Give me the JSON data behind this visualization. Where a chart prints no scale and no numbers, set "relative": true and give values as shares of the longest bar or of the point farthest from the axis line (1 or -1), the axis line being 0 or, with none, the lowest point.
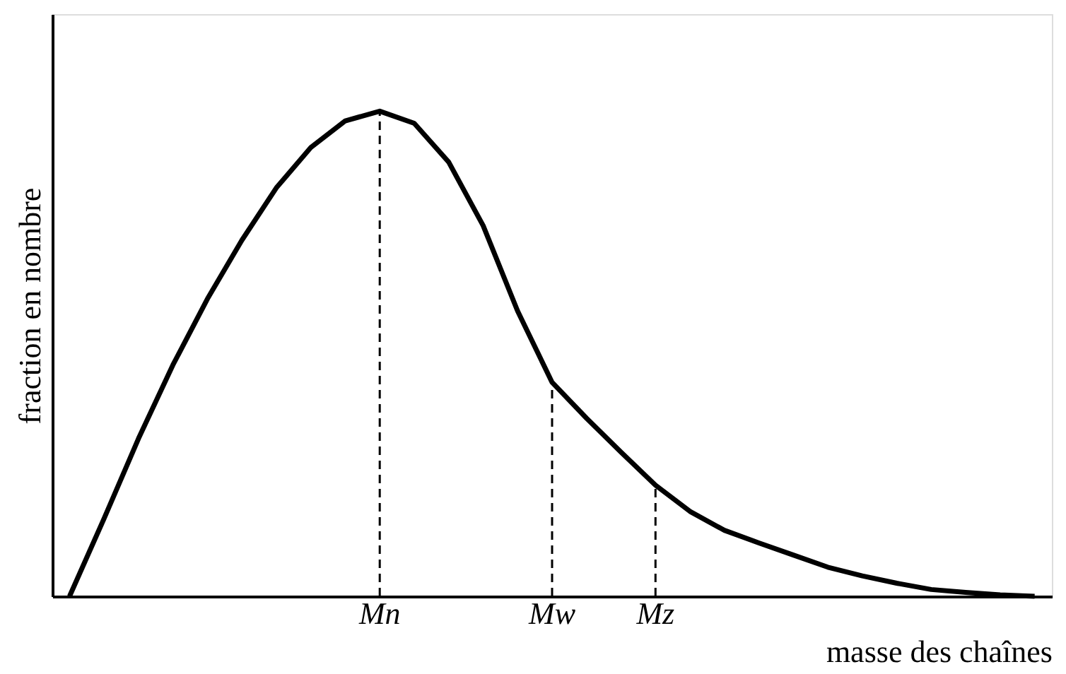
{
  "chart_data": {
    "type": "line",
    "relative": true,
    "xlabel": "masse des chaînes",
    "ylabel": "fraction en nombre",
    "categories": [
      null,
      null,
      null,
      null,
      null,
      null,
      null,
      null,
      null,
      "Mn",
      null,
      null,
      null,
      null,
      "Mw",
      null,
      null,
      "Mz",
      null,
      null,
      null,
      null,
      null,
      null,
      null,
      null,
      null,
      null,
      null
    ],
    "series": [
      {
        "color": "#000000",
        "values": [
          0,
          0.16,
          0.325,
          0.477,
          0.613,
          0.734,
          0.842,
          0.925,
          0.98,
          1.0,
          0.975,
          0.895,
          0.764,
          0.588,
          0.441,
          0.367,
          0.297,
          0.229,
          0.175,
          0.136,
          0.11,
          0.085,
          0.06,
          0.042,
          0.027,
          0.014,
          0.008,
          0.003,
          0
        ]
      }
    ],
    "ref_lines": [
      {
        "axis": "x",
        "value": "Mn",
        "line_style": "dashed"
      },
      {
        "axis": "x",
        "value": "Mw",
        "line_style": "dashed"
      },
      {
        "axis": "x",
        "value": "Mz",
        "line_style": "dashed"
      }
    ],
    "marker": "none",
    "line_style": "solid"
  }
}
